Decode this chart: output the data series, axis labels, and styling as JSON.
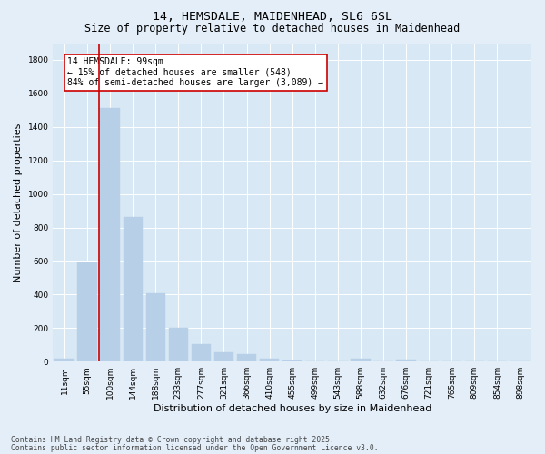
{
  "title1": "14, HEMSDALE, MAIDENHEAD, SL6 6SL",
  "title2": "Size of property relative to detached houses in Maidenhead",
  "xlabel": "Distribution of detached houses by size in Maidenhead",
  "ylabel": "Number of detached properties",
  "categories": [
    "11sqm",
    "55sqm",
    "100sqm",
    "144sqm",
    "188sqm",
    "233sqm",
    "277sqm",
    "321sqm",
    "366sqm",
    "410sqm",
    "455sqm",
    "499sqm",
    "543sqm",
    "588sqm",
    "632sqm",
    "676sqm",
    "721sqm",
    "765sqm",
    "809sqm",
    "854sqm",
    "898sqm"
  ],
  "values": [
    20,
    590,
    1510,
    860,
    410,
    200,
    105,
    55,
    45,
    15,
    5,
    2,
    0,
    18,
    0,
    12,
    0,
    0,
    0,
    0,
    0
  ],
  "bar_color": "#b8cfe8",
  "bar_edge_color": "#b8cfe8",
  "vline_color": "#cc0000",
  "ylim": [
    0,
    1900
  ],
  "yticks": [
    0,
    200,
    400,
    600,
    800,
    1000,
    1200,
    1400,
    1600,
    1800
  ],
  "annotation_text": "14 HEMSDALE: 99sqm\n← 15% of detached houses are smaller (548)\n84% of semi-detached houses are larger (3,089) →",
  "annotation_box_facecolor": "#ffffff",
  "annotation_box_edgecolor": "#cc0000",
  "footer1": "Contains HM Land Registry data © Crown copyright and database right 2025.",
  "footer2": "Contains public sector information licensed under the Open Government Licence v3.0.",
  "bg_color": "#e4eef8",
  "plot_bg_color": "#d8e8f4",
  "grid_color": "#ffffff",
  "title1_fontsize": 9.5,
  "title2_fontsize": 8.5,
  "tick_fontsize": 6.5,
  "label_fontsize": 8,
  "annotation_fontsize": 7,
  "footer_fontsize": 5.8
}
